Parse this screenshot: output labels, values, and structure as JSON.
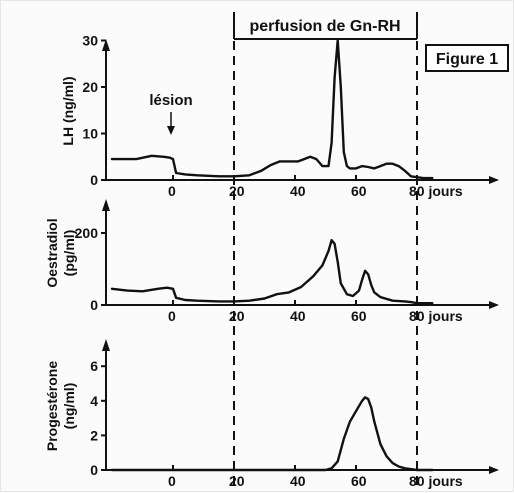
{
  "chart_data": [
    {
      "type": "line",
      "panel": "LH",
      "ylabel": "LH (ng/ml)",
      "xlim": [
        -20,
        85
      ],
      "ylim": [
        0,
        32
      ],
      "yticks": [
        "0",
        "10",
        "20",
        "30"
      ],
      "xtick_labels": [
        "0",
        "20",
        "40",
        "60",
        "80 jours"
      ],
      "series": [
        {
          "x": [
            -20,
            -12,
            -7,
            -3,
            -1,
            0,
            1,
            4,
            8,
            15,
            20,
            25,
            29,
            32,
            35,
            38,
            41,
            43,
            45,
            47,
            49,
            51,
            52,
            53,
            54,
            55,
            56,
            57,
            58,
            60,
            62,
            64,
            66,
            68,
            70,
            72,
            74,
            76,
            78,
            80,
            82,
            85
          ],
          "y": [
            4.5,
            4.5,
            5.2,
            5,
            4.8,
            4.5,
            1.5,
            1.2,
            1,
            0.8,
            0.8,
            1,
            2,
            3.2,
            4,
            4,
            4,
            4.5,
            5,
            4.5,
            3,
            3,
            8,
            22,
            30,
            20,
            6,
            3,
            2.5,
            2.5,
            3,
            2.8,
            2.5,
            3,
            3.5,
            3.5,
            3,
            2,
            0.8,
            0.6,
            0.4,
            0.4
          ]
        }
      ],
      "annotations": [
        "lésion",
        "perfusion de Gn-RH",
        "Figure 1"
      ]
    },
    {
      "type": "line",
      "panel": "Oestradiol",
      "ylabel": "Oestradiol (pg/ml)",
      "xlim": [
        -20,
        85
      ],
      "ylim": [
        0,
        260
      ],
      "yticks": [
        "0",
        "200"
      ],
      "xtick_labels": [
        "0",
        "20",
        "40",
        "60",
        "80 jours"
      ],
      "series": [
        {
          "x": [
            -20,
            -15,
            -10,
            -5,
            -2,
            0,
            1,
            4,
            8,
            15,
            20,
            25,
            30,
            34,
            38,
            42,
            46,
            49,
            51,
            52,
            53,
            54,
            55,
            57,
            59,
            61,
            62,
            63,
            64,
            65,
            66,
            68,
            72,
            76,
            78,
            80,
            85
          ],
          "y": [
            45,
            40,
            38,
            45,
            48,
            45,
            20,
            14,
            12,
            10,
            10,
            12,
            18,
            30,
            35,
            50,
            80,
            110,
            150,
            180,
            170,
            120,
            60,
            30,
            25,
            40,
            70,
            95,
            85,
            55,
            35,
            22,
            12,
            10,
            8,
            5,
            5
          ]
        }
      ]
    },
    {
      "type": "line",
      "panel": "Progesterone",
      "ylabel": "Progestérone (ng/ml)",
      "xlim": [
        -20,
        85
      ],
      "ylim": [
        0,
        7
      ],
      "yticks": [
        "0",
        "2",
        "4",
        "6"
      ],
      "xtick_labels": [
        "0",
        "20",
        "40",
        "60",
        "80 jours"
      ],
      "series": [
        {
          "x": [
            -20,
            0,
            20,
            40,
            50,
            52,
            54,
            56,
            58,
            60,
            62,
            63,
            64,
            65,
            66,
            68,
            70,
            72,
            74,
            76,
            80,
            85
          ],
          "y": [
            0,
            0,
            0,
            0,
            0,
            0.1,
            0.5,
            1.8,
            2.8,
            3.4,
            4.0,
            4.2,
            4.1,
            3.6,
            2.8,
            1.5,
            0.8,
            0.4,
            0.2,
            0.1,
            0,
            0
          ]
        }
      ]
    }
  ],
  "labels": {
    "perfusion": "perfusion de Gn-RH",
    "figure": "Figure 1",
    "lesion": "lésion"
  }
}
